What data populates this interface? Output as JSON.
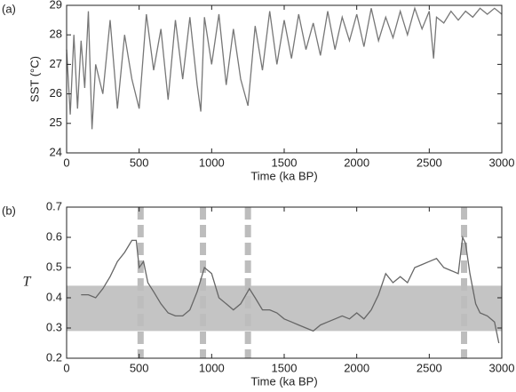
{
  "chart_data": [
    {
      "type": "line",
      "panel_label": "(a)",
      "ylabel": "SST (°C)",
      "xlabel": "Time (ka BP)",
      "xlim": [
        0,
        3000
      ],
      "ylim": [
        24,
        29
      ],
      "xticks": [
        0,
        500,
        1000,
        1500,
        2000,
        2500,
        3000
      ],
      "yticks": [
        24,
        25,
        26,
        27,
        28,
        29
      ],
      "color": "#777777",
      "x": [
        0,
        25,
        50,
        75,
        100,
        125,
        150,
        175,
        200,
        250,
        300,
        350,
        400,
        450,
        500,
        550,
        600,
        650,
        700,
        750,
        800,
        850,
        900,
        925,
        950,
        1000,
        1050,
        1100,
        1150,
        1200,
        1250,
        1300,
        1350,
        1400,
        1450,
        1500,
        1550,
        1600,
        1650,
        1700,
        1750,
        1800,
        1850,
        1900,
        1950,
        2000,
        2050,
        2100,
        2150,
        2200,
        2250,
        2300,
        2350,
        2400,
        2450,
        2500,
        2530,
        2550,
        2600,
        2650,
        2700,
        2750,
        2800,
        2850,
        2900,
        2950,
        3000
      ],
      "values": [
        27.5,
        25.3,
        28.0,
        25.5,
        27.8,
        26.2,
        28.8,
        24.8,
        27.0,
        26.0,
        28.5,
        25.5,
        28.0,
        26.5,
        25.5,
        28.7,
        26.8,
        28.2,
        25.8,
        28.5,
        26.5,
        28.6,
        26.3,
        25.4,
        28.6,
        27.0,
        28.7,
        26.3,
        28.2,
        26.5,
        25.6,
        28.3,
        26.8,
        28.8,
        27.0,
        28.5,
        27.2,
        28.7,
        27.5,
        28.4,
        27.3,
        28.8,
        27.5,
        28.6,
        27.8,
        28.7,
        27.6,
        28.9,
        27.8,
        28.6,
        27.9,
        28.8,
        28.0,
        28.9,
        28.2,
        28.8,
        27.2,
        28.6,
        28.4,
        28.8,
        28.5,
        28.8,
        28.6,
        28.9,
        28.7,
        28.9,
        28.7
      ]
    },
    {
      "type": "line",
      "panel_label": "(b)",
      "ylabel": "T",
      "xlabel": "Time (ka BP)",
      "xlim": [
        0,
        3000
      ],
      "ylim": [
        0.2,
        0.7
      ],
      "xticks": [
        0,
        500,
        1000,
        1500,
        2000,
        2500,
        3000
      ],
      "yticks": [
        0.2,
        0.3,
        0.4,
        0.5,
        0.6,
        0.7
      ],
      "color": "#666666",
      "band": [
        0.29,
        0.44
      ],
      "band_color": "#c4c4c4",
      "vlines": [
        510,
        940,
        1250,
        2740
      ],
      "vline_color": "#bdbdbd",
      "x": [
        100,
        150,
        200,
        250,
        300,
        350,
        400,
        450,
        480,
        500,
        530,
        560,
        600,
        650,
        700,
        750,
        800,
        850,
        900,
        950,
        1000,
        1050,
        1100,
        1150,
        1200,
        1260,
        1300,
        1350,
        1400,
        1450,
        1500,
        1550,
        1600,
        1650,
        1700,
        1750,
        1800,
        1850,
        1900,
        1950,
        2000,
        2050,
        2100,
        2150,
        2200,
        2250,
        2300,
        2350,
        2400,
        2450,
        2500,
        2550,
        2600,
        2650,
        2700,
        2730,
        2750,
        2780,
        2820,
        2850,
        2900,
        2950,
        2980
      ],
      "values": [
        0.41,
        0.41,
        0.4,
        0.43,
        0.47,
        0.52,
        0.55,
        0.59,
        0.59,
        0.5,
        0.52,
        0.45,
        0.42,
        0.38,
        0.35,
        0.34,
        0.34,
        0.36,
        0.42,
        0.5,
        0.48,
        0.4,
        0.38,
        0.36,
        0.38,
        0.43,
        0.4,
        0.36,
        0.36,
        0.35,
        0.33,
        0.32,
        0.31,
        0.3,
        0.29,
        0.31,
        0.32,
        0.33,
        0.34,
        0.33,
        0.35,
        0.33,
        0.36,
        0.41,
        0.48,
        0.45,
        0.47,
        0.45,
        0.5,
        0.51,
        0.52,
        0.53,
        0.5,
        0.49,
        0.48,
        0.6,
        0.58,
        0.48,
        0.38,
        0.35,
        0.34,
        0.32,
        0.25
      ]
    }
  ]
}
